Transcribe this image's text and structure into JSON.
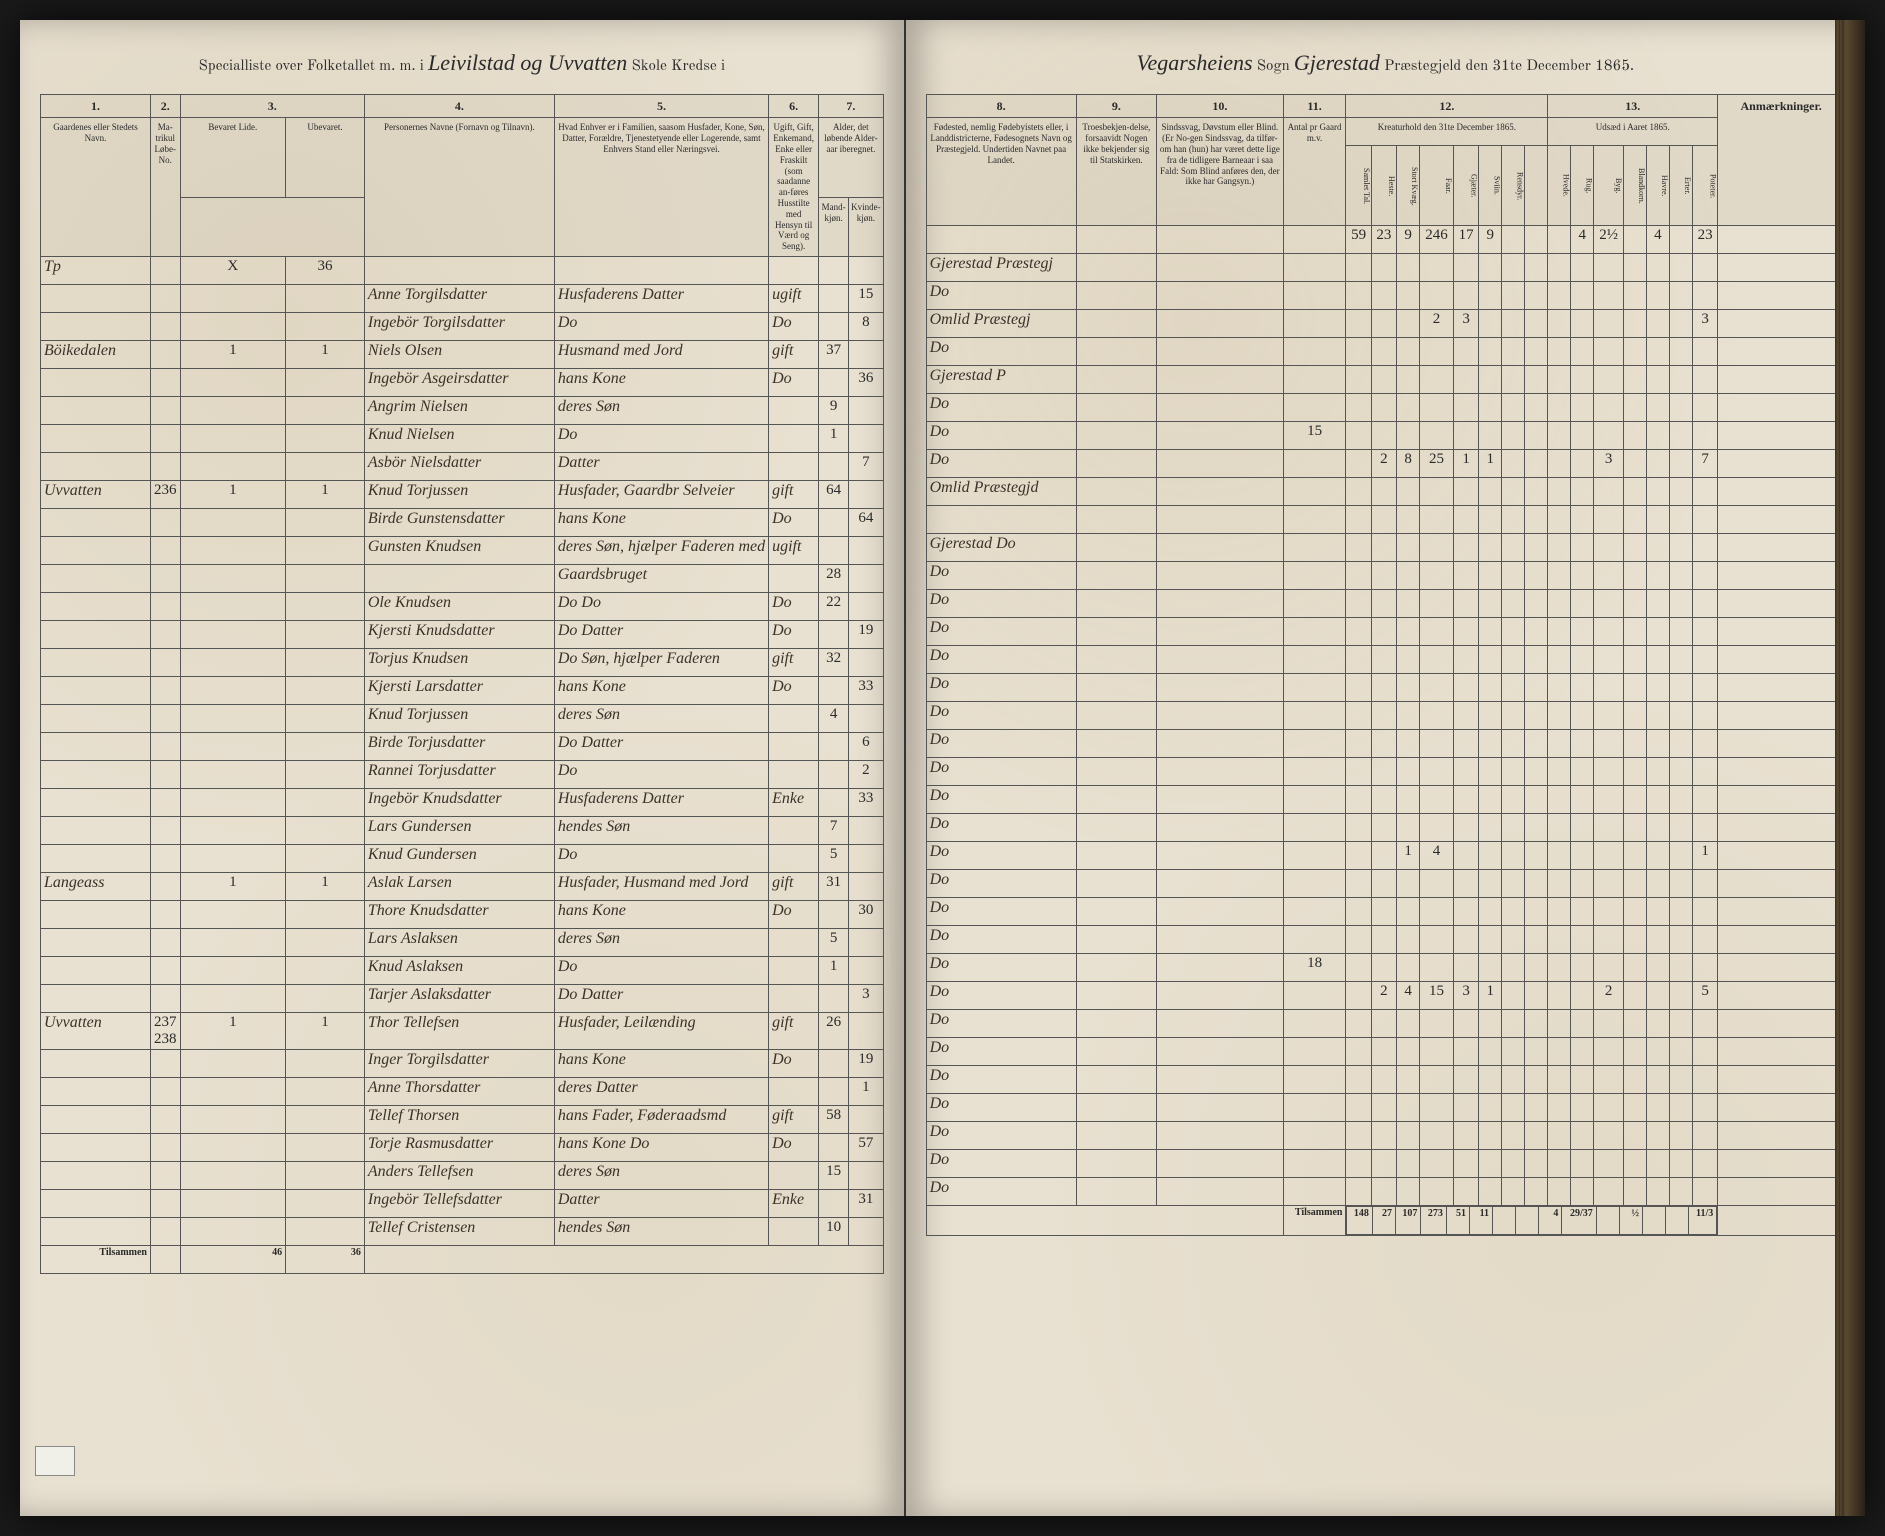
{
  "header": {
    "left_printed_prefix": "Specialliste over Folketallet m. m. i",
    "left_script_district": "Leivilstad og Uvvatten",
    "left_printed_middle": "Skole",
    "left_printed_suffix": "Kredse i",
    "right_script_parish": "Vegarsheiens",
    "right_printed_sogn": "Sogn",
    "right_script_gjeld": "Gjerestad",
    "right_printed_suffix": "Præstegjeld den 31te December 1865."
  },
  "columns_left": {
    "c1": "1.",
    "c2": "2.",
    "c3": "3.",
    "c4": "4.",
    "c5": "5.",
    "c6": "6.",
    "c7": "7.",
    "h1": "Gaardenes eller Stedets Navn.",
    "h2a": "Ma-trikul Løbe-No.",
    "h3a": "Bevaret Lide.",
    "h3b": "Ubevaret.",
    "h4": "Personernes Navne (Fornavn og Tilnavn).",
    "h5": "Hvad Enhver er i Familien, saasom Husfader, Kone, Søn, Datter, Forældre, Tjenestetyende eller Logerende, samt Enhvers Stand eller Næringsvei.",
    "h6": "Ugift, Gift, Enkemand, Enke eller Fraskilt (som saadanne an-føres Husstilte med Hensyn til Værd og Seng).",
    "h7": "Alder, det løbende Alder-aar iberegnet.",
    "h7a": "Mand-kjøn.",
    "h7b": "Kvinde-kjøn."
  },
  "columns_right": {
    "c8": "8.",
    "c9": "9.",
    "c10": "10.",
    "c11": "11.",
    "c12": "12.",
    "c13": "13.",
    "h8": "Fødested, nemlig Fødebyistets eller, i Landdistricterne, Fødesognets Navn og Præstegjeld. Undertiden Navnet paa Landet.",
    "h9": "Troesbekjen-delse, forsaavidt Nogen ikke bekjender sig til Statskirken.",
    "h10": "Sindssvag, Døvstum eller Blind. (Er No-gen Sindssvag, da tilfør-om han (hun) har været dette lige fra de tidligere Barneaar i saa Fald: Som Blind anføres den, der ikke har Gangsyn.)",
    "h11": "Antal pr Gaard m.v.",
    "h12": "Kreaturhold den 31te December 1865.",
    "h13": "Udsæd i Aaret 1865.",
    "h_remarks": "Anmærkninger.",
    "stock": [
      "Samlet Tal.",
      "Heste.",
      "Stort Kvæg.",
      "Faar.",
      "Gjæter.",
      "Sviin.",
      "Rensdyr."
    ],
    "seed": [
      "Hvede.",
      "Rug.",
      "Byg.",
      "Blandkorn.",
      "Havre.",
      "Erter.",
      "Poteter."
    ]
  },
  "rows": [
    {
      "place": "Tp",
      "mno": "",
      "b": "X",
      "ub": "36",
      "name": "",
      "role": "",
      "status": "",
      "m": "",
      "f": "",
      "birthplace": "",
      "stock": [
        "59",
        "23",
        "9",
        "246",
        "17",
        "9",
        "",
        "",
        "",
        "4",
        "2½",
        "",
        "4",
        "",
        "23"
      ],
      "n11": ""
    },
    {
      "place": "",
      "mno": "",
      "b": "",
      "ub": "",
      "name": "Anne Torgilsdatter",
      "role": "Husfaderens Datter",
      "status": "ugift",
      "m": "",
      "f": "15",
      "birthplace": "Gjerestad Præstegj",
      "stock": [],
      "n11": ""
    },
    {
      "place": "",
      "mno": "",
      "b": "",
      "ub": "",
      "name": "Ingebör Torgilsdatter",
      "role": "Do",
      "status": "Do",
      "m": "",
      "f": "8",
      "birthplace": "Do",
      "stock": [],
      "n11": ""
    },
    {
      "place": "Böikedalen",
      "mno": "",
      "b": "1",
      "ub": "1",
      "name": "Niels Olsen",
      "role": "Husmand med Jord",
      "status": "gift",
      "m": "37",
      "f": "",
      "birthplace": "Omlid Præstegj",
      "stock": [
        "",
        "",
        "",
        "2",
        "3",
        "",
        "",
        "",
        "",
        "",
        "",
        "",
        "",
        "",
        "3"
      ],
      "n11": ""
    },
    {
      "place": "",
      "mno": "",
      "b": "",
      "ub": "",
      "name": "Ingebör Asgeirsdatter",
      "role": "hans Kone",
      "status": "Do",
      "m": "",
      "f": "36",
      "birthplace": "Do",
      "stock": [],
      "n11": ""
    },
    {
      "place": "",
      "mno": "",
      "b": "",
      "ub": "",
      "name": "Angrim Nielsen",
      "role": "deres Søn",
      "status": "",
      "m": "9",
      "f": "",
      "birthplace": "Gjerestad P",
      "stock": [],
      "n11": ""
    },
    {
      "place": "",
      "mno": "",
      "b": "",
      "ub": "",
      "name": "Knud Nielsen",
      "role": "Do",
      "status": "",
      "m": "1",
      "f": "",
      "birthplace": "Do",
      "stock": [],
      "n11": ""
    },
    {
      "place": "",
      "mno": "",
      "b": "",
      "ub": "",
      "name": "Asbör Nielsdatter",
      "role": "Datter",
      "status": "",
      "m": "",
      "f": "7",
      "birthplace": "Do",
      "stock": [],
      "n11": "15"
    },
    {
      "place": "Uvvatten",
      "mno": "236",
      "b": "1",
      "ub": "1",
      "name": "Knud Torjussen",
      "role": "Husfader, Gaardbr Selveier",
      "status": "gift",
      "m": "64",
      "f": "",
      "birthplace": "Do",
      "stock": [
        "",
        "2",
        "8",
        "25",
        "1",
        "1",
        "",
        "",
        "",
        "",
        "3",
        "",
        "",
        "",
        "7"
      ],
      "n11": ""
    },
    {
      "place": "",
      "mno": "",
      "b": "",
      "ub": "",
      "name": "Birde Gunstensdatter",
      "role": "hans Kone",
      "status": "Do",
      "m": "",
      "f": "64",
      "birthplace": "Omlid Præstegjd",
      "stock": [],
      "n11": ""
    },
    {
      "place": "",
      "mno": "",
      "b": "",
      "ub": "",
      "name": "Gunsten Knudsen",
      "role": "deres Søn, hjælper Faderen med",
      "status": "ugift",
      "m": "",
      "f": "",
      "birthplace": "",
      "stock": [],
      "n11": ""
    },
    {
      "place": "",
      "mno": "",
      "b": "",
      "ub": "",
      "name": "",
      "role": "Gaardsbruget",
      "status": "",
      "m": "28",
      "f": "",
      "birthplace": "Gjerestad Do",
      "stock": [],
      "n11": ""
    },
    {
      "place": "",
      "mno": "",
      "b": "",
      "ub": "",
      "name": "Ole Knudsen",
      "role": "Do Do",
      "status": "Do",
      "m": "22",
      "f": "",
      "birthplace": "Do",
      "stock": [],
      "n11": ""
    },
    {
      "place": "",
      "mno": "",
      "b": "",
      "ub": "",
      "name": "Kjersti Knudsdatter",
      "role": "Do Datter",
      "status": "Do",
      "m": "",
      "f": "19",
      "birthplace": "Do",
      "stock": [],
      "n11": ""
    },
    {
      "place": "",
      "mno": "",
      "b": "",
      "ub": "",
      "name": "Torjus Knudsen",
      "role": "Do Søn, hjælper Faderen",
      "status": "gift",
      "m": "32",
      "f": "",
      "birthplace": "Do",
      "stock": [],
      "n11": ""
    },
    {
      "place": "",
      "mno": "",
      "b": "",
      "ub": "",
      "name": "Kjersti Larsdatter",
      "role": "hans Kone",
      "status": "Do",
      "m": "",
      "f": "33",
      "birthplace": "Do",
      "stock": [],
      "n11": ""
    },
    {
      "place": "",
      "mno": "",
      "b": "",
      "ub": "",
      "name": "Knud Torjussen",
      "role": "deres Søn",
      "status": "",
      "m": "4",
      "f": "",
      "birthplace": "Do",
      "stock": [],
      "n11": ""
    },
    {
      "place": "",
      "mno": "",
      "b": "",
      "ub": "",
      "name": "Birde Torjusdatter",
      "role": "Do Datter",
      "status": "",
      "m": "",
      "f": "6",
      "birthplace": "Do",
      "stock": [],
      "n11": ""
    },
    {
      "place": "",
      "mno": "",
      "b": "",
      "ub": "",
      "name": "Rannei Torjusdatter",
      "role": "Do",
      "status": "",
      "m": "",
      "f": "2",
      "birthplace": "Do",
      "stock": [],
      "n11": ""
    },
    {
      "place": "",
      "mno": "",
      "b": "",
      "ub": "",
      "name": "Ingebör Knudsdatter",
      "role": "Husfaderens Datter",
      "status": "Enke",
      "m": "",
      "f": "33",
      "birthplace": "Do",
      "stock": [],
      "n11": ""
    },
    {
      "place": "",
      "mno": "",
      "b": "",
      "ub": "",
      "name": "Lars Gundersen",
      "role": "hendes Søn",
      "status": "",
      "m": "7",
      "f": "",
      "birthplace": "Do",
      "stock": [],
      "n11": ""
    },
    {
      "place": "",
      "mno": "",
      "b": "",
      "ub": "",
      "name": "Knud Gundersen",
      "role": "Do",
      "status": "",
      "m": "5",
      "f": "",
      "birthplace": "Do",
      "stock": [],
      "n11": ""
    },
    {
      "place": "Langeass",
      "mno": "",
      "b": "1",
      "ub": "1",
      "name": "Aslak Larsen",
      "role": "Husfader, Husmand med Jord",
      "status": "gift",
      "m": "31",
      "f": "",
      "birthplace": "Do",
      "stock": [
        "",
        "",
        "1",
        "4",
        "",
        "",
        "",
        "",
        "",
        "",
        "",
        "",
        "",
        "",
        "1"
      ],
      "n11": ""
    },
    {
      "place": "",
      "mno": "",
      "b": "",
      "ub": "",
      "name": "Thore Knudsdatter",
      "role": "hans Kone",
      "status": "Do",
      "m": "",
      "f": "30",
      "birthplace": "Do",
      "stock": [],
      "n11": ""
    },
    {
      "place": "",
      "mno": "",
      "b": "",
      "ub": "",
      "name": "Lars Aslaksen",
      "role": "deres Søn",
      "status": "",
      "m": "5",
      "f": "",
      "birthplace": "Do",
      "stock": [],
      "n11": ""
    },
    {
      "place": "",
      "mno": "",
      "b": "",
      "ub": "",
      "name": "Knud Aslaksen",
      "role": "Do",
      "status": "",
      "m": "1",
      "f": "",
      "birthplace": "Do",
      "stock": [],
      "n11": ""
    },
    {
      "place": "",
      "mno": "",
      "b": "",
      "ub": "",
      "name": "Tarjer Aslaksdatter",
      "role": "Do Datter",
      "status": "",
      "m": "",
      "f": "3",
      "birthplace": "Do",
      "stock": [],
      "n11": "18"
    },
    {
      "place": "Uvvatten",
      "mno": "237 238",
      "b": "1",
      "ub": "1",
      "name": "Thor Tellefsen",
      "role": "Husfader, Leilænding",
      "status": "gift",
      "m": "26",
      "f": "",
      "birthplace": "Do",
      "stock": [
        "",
        "2",
        "4",
        "15",
        "3",
        "1",
        "",
        "",
        "",
        "",
        "2",
        "",
        "",
        "",
        "5"
      ],
      "n11": ""
    },
    {
      "place": "",
      "mno": "",
      "b": "",
      "ub": "",
      "name": "Inger Torgilsdatter",
      "role": "hans Kone",
      "status": "Do",
      "m": "",
      "f": "19",
      "birthplace": "Do",
      "stock": [],
      "n11": ""
    },
    {
      "place": "",
      "mno": "",
      "b": "",
      "ub": "",
      "name": "Anne Thorsdatter",
      "role": "deres Datter",
      "status": "",
      "m": "",
      "f": "1",
      "birthplace": "Do",
      "stock": [],
      "n11": ""
    },
    {
      "place": "",
      "mno": "",
      "b": "",
      "ub": "",
      "name": "Tellef Thorsen",
      "role": "hans Fader, Føderaadsmd",
      "status": "gift",
      "m": "58",
      "f": "",
      "birthplace": "Do",
      "stock": [],
      "n11": ""
    },
    {
      "place": "",
      "mno": "",
      "b": "",
      "ub": "",
      "name": "Torje Rasmusdatter",
      "role": "hans Kone Do",
      "status": "Do",
      "m": "",
      "f": "57",
      "birthplace": "Do",
      "stock": [],
      "n11": ""
    },
    {
      "place": "",
      "mno": "",
      "b": "",
      "ub": "",
      "name": "Anders Tellefsen",
      "role": "deres Søn",
      "status": "",
      "m": "15",
      "f": "",
      "birthplace": "Do",
      "stock": [],
      "n11": ""
    },
    {
      "place": "",
      "mno": "",
      "b": "",
      "ub": "",
      "name": "Ingebör Tellefsdatter",
      "role": "Datter",
      "status": "Enke",
      "m": "",
      "f": "31",
      "birthplace": "Do",
      "stock": [],
      "n11": ""
    },
    {
      "place": "",
      "mno": "",
      "b": "",
      "ub": "",
      "name": "Tellef Cristensen",
      "role": "hendes Søn",
      "status": "",
      "m": "10",
      "f": "",
      "birthplace": "Do",
      "stock": [],
      "n11": ""
    }
  ],
  "footer": {
    "left_label": "Tilsammen",
    "left_b": "46",
    "left_ub": "36",
    "right_label": "Tilsammen",
    "right_vals": [
      "148",
      "27",
      "107",
      "273",
      "51",
      "11",
      "",
      "",
      "4",
      "29/37",
      "",
      "½",
      "",
      "",
      "11/3"
    ]
  }
}
